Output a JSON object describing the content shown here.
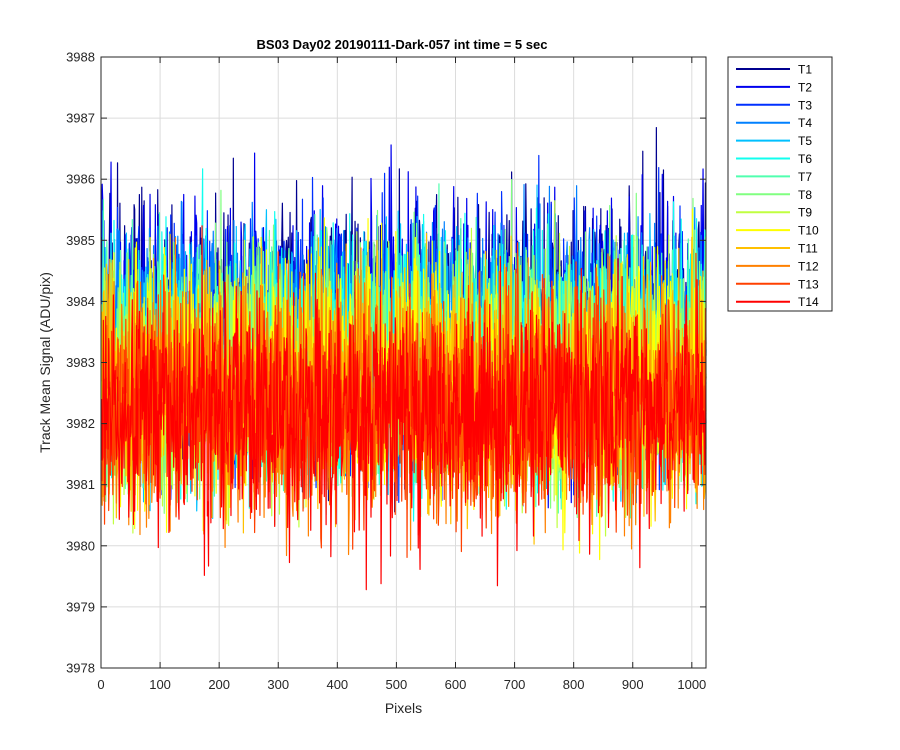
{
  "chart_data": {
    "type": "line",
    "title": "BS03 Day02 20190111-Dark-057 int time = 5 sec",
    "xlabel": "Pixels",
    "ylabel": "Track Mean Signal (ADU/pix)",
    "xlim": [
      0,
      1024
    ],
    "ylim": [
      3978,
      3988
    ],
    "xticks": [
      0,
      100,
      200,
      300,
      400,
      500,
      600,
      700,
      800,
      900,
      1000
    ],
    "yticks": [
      3978,
      3979,
      3980,
      3981,
      3982,
      3983,
      3984,
      3985,
      3986,
      3987,
      3988
    ],
    "grid": true,
    "legend_location": "outside-top-right",
    "series": [
      {
        "name": "T1",
        "color": "#00008f",
        "mean": 3983.6,
        "spread": 1.5,
        "min": 3979.6,
        "max": 3987.4
      },
      {
        "name": "T2",
        "color": "#0000ee",
        "mean": 3983.5,
        "spread": 1.5,
        "min": 3979.8,
        "max": 3987.5
      },
      {
        "name": "T3",
        "color": "#0030ff",
        "mean": 3983.4,
        "spread": 1.45,
        "min": 3980.0,
        "max": 3987.2
      },
      {
        "name": "T4",
        "color": "#0080ff",
        "mean": 3983.3,
        "spread": 1.45,
        "min": 3980.1,
        "max": 3987.5
      },
      {
        "name": "T5",
        "color": "#00c0ff",
        "mean": 3983.2,
        "spread": 1.45,
        "min": 3980.0,
        "max": 3987.0
      },
      {
        "name": "T6",
        "color": "#10ffef",
        "mean": 3983.1,
        "spread": 1.4,
        "min": 3980.2,
        "max": 3986.9
      },
      {
        "name": "T7",
        "color": "#50ffaf",
        "mean": 3983.0,
        "spread": 1.4,
        "min": 3980.0,
        "max": 3986.8
      },
      {
        "name": "T8",
        "color": "#80ff80",
        "mean": 3982.9,
        "spread": 1.4,
        "min": 3979.7,
        "max": 3987.5
      },
      {
        "name": "T9",
        "color": "#c0ff40",
        "mean": 3982.8,
        "spread": 1.4,
        "min": 3979.6,
        "max": 3986.6
      },
      {
        "name": "T10",
        "color": "#ffff00",
        "mean": 3982.7,
        "spread": 1.45,
        "min": 3979.4,
        "max": 3987.0
      },
      {
        "name": "T11",
        "color": "#ffc000",
        "mean": 3982.6,
        "spread": 1.4,
        "min": 3979.3,
        "max": 3986.5
      },
      {
        "name": "T12",
        "color": "#ff8000",
        "mean": 3982.4,
        "spread": 1.4,
        "min": 3979.2,
        "max": 3986.6
      },
      {
        "name": "T13",
        "color": "#ff4000",
        "mean": 3982.3,
        "spread": 1.35,
        "min": 3978.9,
        "max": 3986.0
      },
      {
        "name": "T14",
        "color": "#ff0000",
        "mean": 3982.2,
        "spread": 1.35,
        "min": 3978.7,
        "max": 3985.5
      }
    ]
  }
}
